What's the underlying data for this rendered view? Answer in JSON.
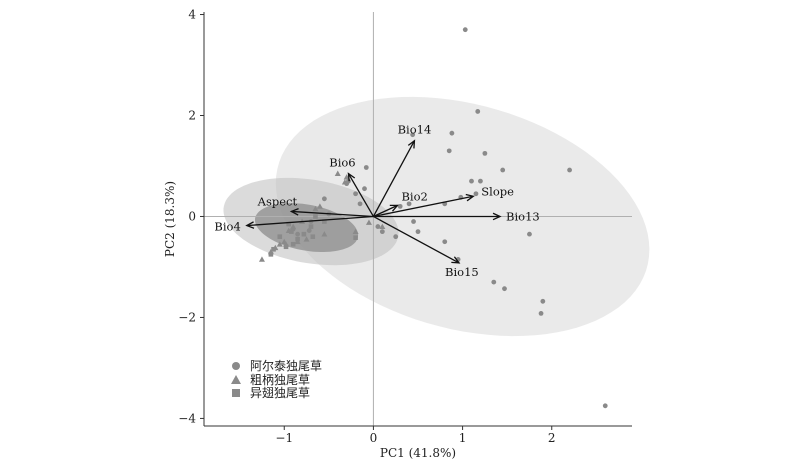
{
  "chart_data": {
    "type": "scatter",
    "subtype": "pca-biplot",
    "title": "",
    "xlabel": "PC1 (41.8%)",
    "ylabel": "PC2 (18.3%)",
    "xlim": [
      -1.9,
      2.9
    ],
    "ylim": [
      -4.15,
      4.05
    ],
    "x_ticks": [
      -1,
      0,
      1,
      2
    ],
    "y_ticks": [
      -4,
      -2,
      0,
      2,
      4
    ],
    "grid": false,
    "zero_lines": true,
    "legend_position": "bottom-left",
    "colors": {
      "points": "#8a8a8a",
      "ellipse_altai": "#d9d9d9",
      "ellipse_crassipes_outer": "#bdbdbd",
      "ellipse_anomalus_inner": "#8c8c8c",
      "arrows": "#111111",
      "axes": "#333333",
      "zero_lines": "#b0b0b0"
    },
    "series": [
      {
        "name": "阿尔泰独尾草",
        "marker": "circle",
        "points": [
          [
            1.03,
            3.7
          ],
          [
            1.17,
            2.08
          ],
          [
            0.88,
            1.65
          ],
          [
            0.44,
            1.62
          ],
          [
            0.85,
            1.3
          ],
          [
            1.25,
            1.25
          ],
          [
            1.45,
            0.92
          ],
          [
            2.2,
            0.92
          ],
          [
            1.1,
            0.7
          ],
          [
            1.2,
            0.7
          ],
          [
            1.15,
            0.45
          ],
          [
            0.8,
            0.25
          ],
          [
            0.98,
            0.38
          ],
          [
            0.4,
            0.25
          ],
          [
            0.3,
            0.2
          ],
          [
            0.05,
            -0.2
          ],
          [
            0.1,
            -0.3
          ],
          [
            0.45,
            -0.1
          ],
          [
            0.5,
            -0.3
          ],
          [
            0.25,
            -0.4
          ],
          [
            0.8,
            -0.5
          ],
          [
            1.75,
            -0.35
          ],
          [
            0.95,
            -0.85
          ],
          [
            1.35,
            -1.3
          ],
          [
            1.47,
            -1.43
          ],
          [
            1.9,
            -1.68
          ],
          [
            1.88,
            -1.92
          ],
          [
            2.6,
            -3.75
          ],
          [
            -0.1,
            0.55
          ],
          [
            -0.2,
            0.45
          ],
          [
            -0.28,
            0.7
          ],
          [
            -0.3,
            0.65
          ],
          [
            -0.55,
            0.35
          ],
          [
            -0.08,
            0.97
          ],
          [
            -0.5,
            0.05
          ],
          [
            -0.15,
            0.25
          ],
          [
            -0.7,
            -0.1
          ],
          [
            -0.72,
            -0.28
          ],
          [
            -0.85,
            -0.35
          ],
          [
            -0.9,
            -0.25
          ]
        ]
      },
      {
        "name": "粗柄独尾草",
        "marker": "triangle",
        "points": [
          [
            -0.4,
            0.85
          ],
          [
            -0.3,
            0.78
          ],
          [
            -0.32,
            0.68
          ],
          [
            -0.6,
            0.2
          ],
          [
            -0.65,
            0.15
          ],
          [
            -0.8,
            -0.1
          ],
          [
            -0.95,
            -0.28
          ],
          [
            -1.0,
            -0.5
          ],
          [
            -0.98,
            -0.55
          ],
          [
            -1.05,
            -0.55
          ],
          [
            -1.1,
            -0.62
          ],
          [
            -1.15,
            -0.7
          ],
          [
            -1.25,
            -0.85
          ],
          [
            -0.9,
            -0.2
          ],
          [
            -0.55,
            -0.35
          ],
          [
            -0.05,
            -0.12
          ],
          [
            0.1,
            -0.2
          ],
          [
            -0.2,
            -0.3
          ],
          [
            -0.75,
            -0.45
          ],
          [
            -0.85,
            -0.5
          ]
        ]
      },
      {
        "name": "异翅独尾草",
        "marker": "square",
        "points": [
          [
            -1.05,
            -0.4
          ],
          [
            -0.98,
            -0.6
          ],
          [
            -1.12,
            -0.65
          ],
          [
            -1.15,
            -0.75
          ],
          [
            -0.92,
            -0.3
          ],
          [
            -0.85,
            -0.45
          ],
          [
            -0.7,
            -0.2
          ],
          [
            -0.65,
            0.0
          ],
          [
            -0.55,
            -0.1
          ],
          [
            -0.2,
            -0.42
          ],
          [
            -0.9,
            -0.55
          ],
          [
            -0.78,
            -0.35
          ],
          [
            -0.68,
            -0.4
          ],
          [
            -0.95,
            -0.15
          ]
        ]
      }
    ],
    "ellipses": [
      {
        "group": "阿尔泰独尾草",
        "cx": 1.0,
        "cy": 0.0,
        "rx": 1.87,
        "ry": 2.55,
        "angle": 33,
        "fill_opacity": 0.55
      },
      {
        "group": "粗柄独尾草",
        "cx": -0.7,
        "cy": -0.1,
        "rx": 0.78,
        "ry": 1.05,
        "angle": 58,
        "fill_opacity": 0.55
      },
      {
        "group": "异翅独尾草",
        "cx": -0.75,
        "cy": -0.22,
        "rx": 0.43,
        "ry": 0.62,
        "angle": 60,
        "fill_opacity": 0.75
      }
    ],
    "loadings": [
      {
        "name": "Bio14",
        "x": 0.46,
        "y": 1.5
      },
      {
        "name": "Bio6",
        "x": -0.28,
        "y": 0.85
      },
      {
        "name": "Bio2",
        "x": 0.27,
        "y": 0.22
      },
      {
        "name": "Slope",
        "x": 1.12,
        "y": 0.4
      },
      {
        "name": "Bio13",
        "x": 1.42,
        "y": 0.0
      },
      {
        "name": "Bio15",
        "x": 0.96,
        "y": -0.92
      },
      {
        "name": "Aspect",
        "x": -0.92,
        "y": 0.1
      },
      {
        "name": "Bio4",
        "x": -1.42,
        "y": -0.18
      }
    ]
  }
}
